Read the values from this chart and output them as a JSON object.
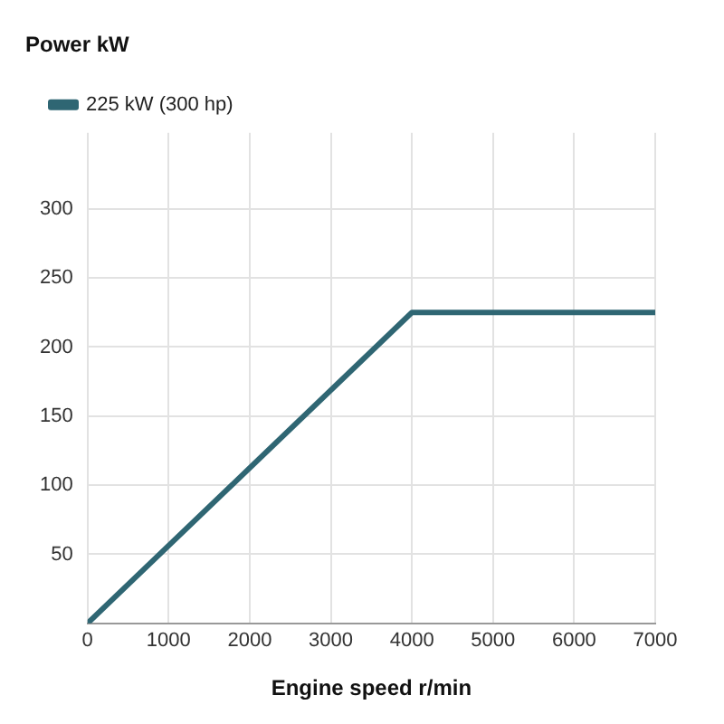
{
  "chart_data": {
    "type": "line",
    "ylabel": "Power kW",
    "xlabel": "Engine speed r/min",
    "x": [
      0,
      4000,
      7000
    ],
    "series": [
      {
        "name": "225 kW (300 hp)",
        "color": "#2f6673",
        "values": [
          0,
          225,
          225
        ]
      }
    ],
    "xlim": [
      0,
      7000
    ],
    "xticks": [
      0,
      1000,
      2000,
      3000,
      4000,
      5000,
      6000,
      7000
    ],
    "ylim": [
      0,
      355
    ],
    "yticks": [
      50,
      100,
      150,
      200,
      250,
      300
    ],
    "grid": true,
    "legend": "top left",
    "marker": "none",
    "line_style": "solid"
  }
}
